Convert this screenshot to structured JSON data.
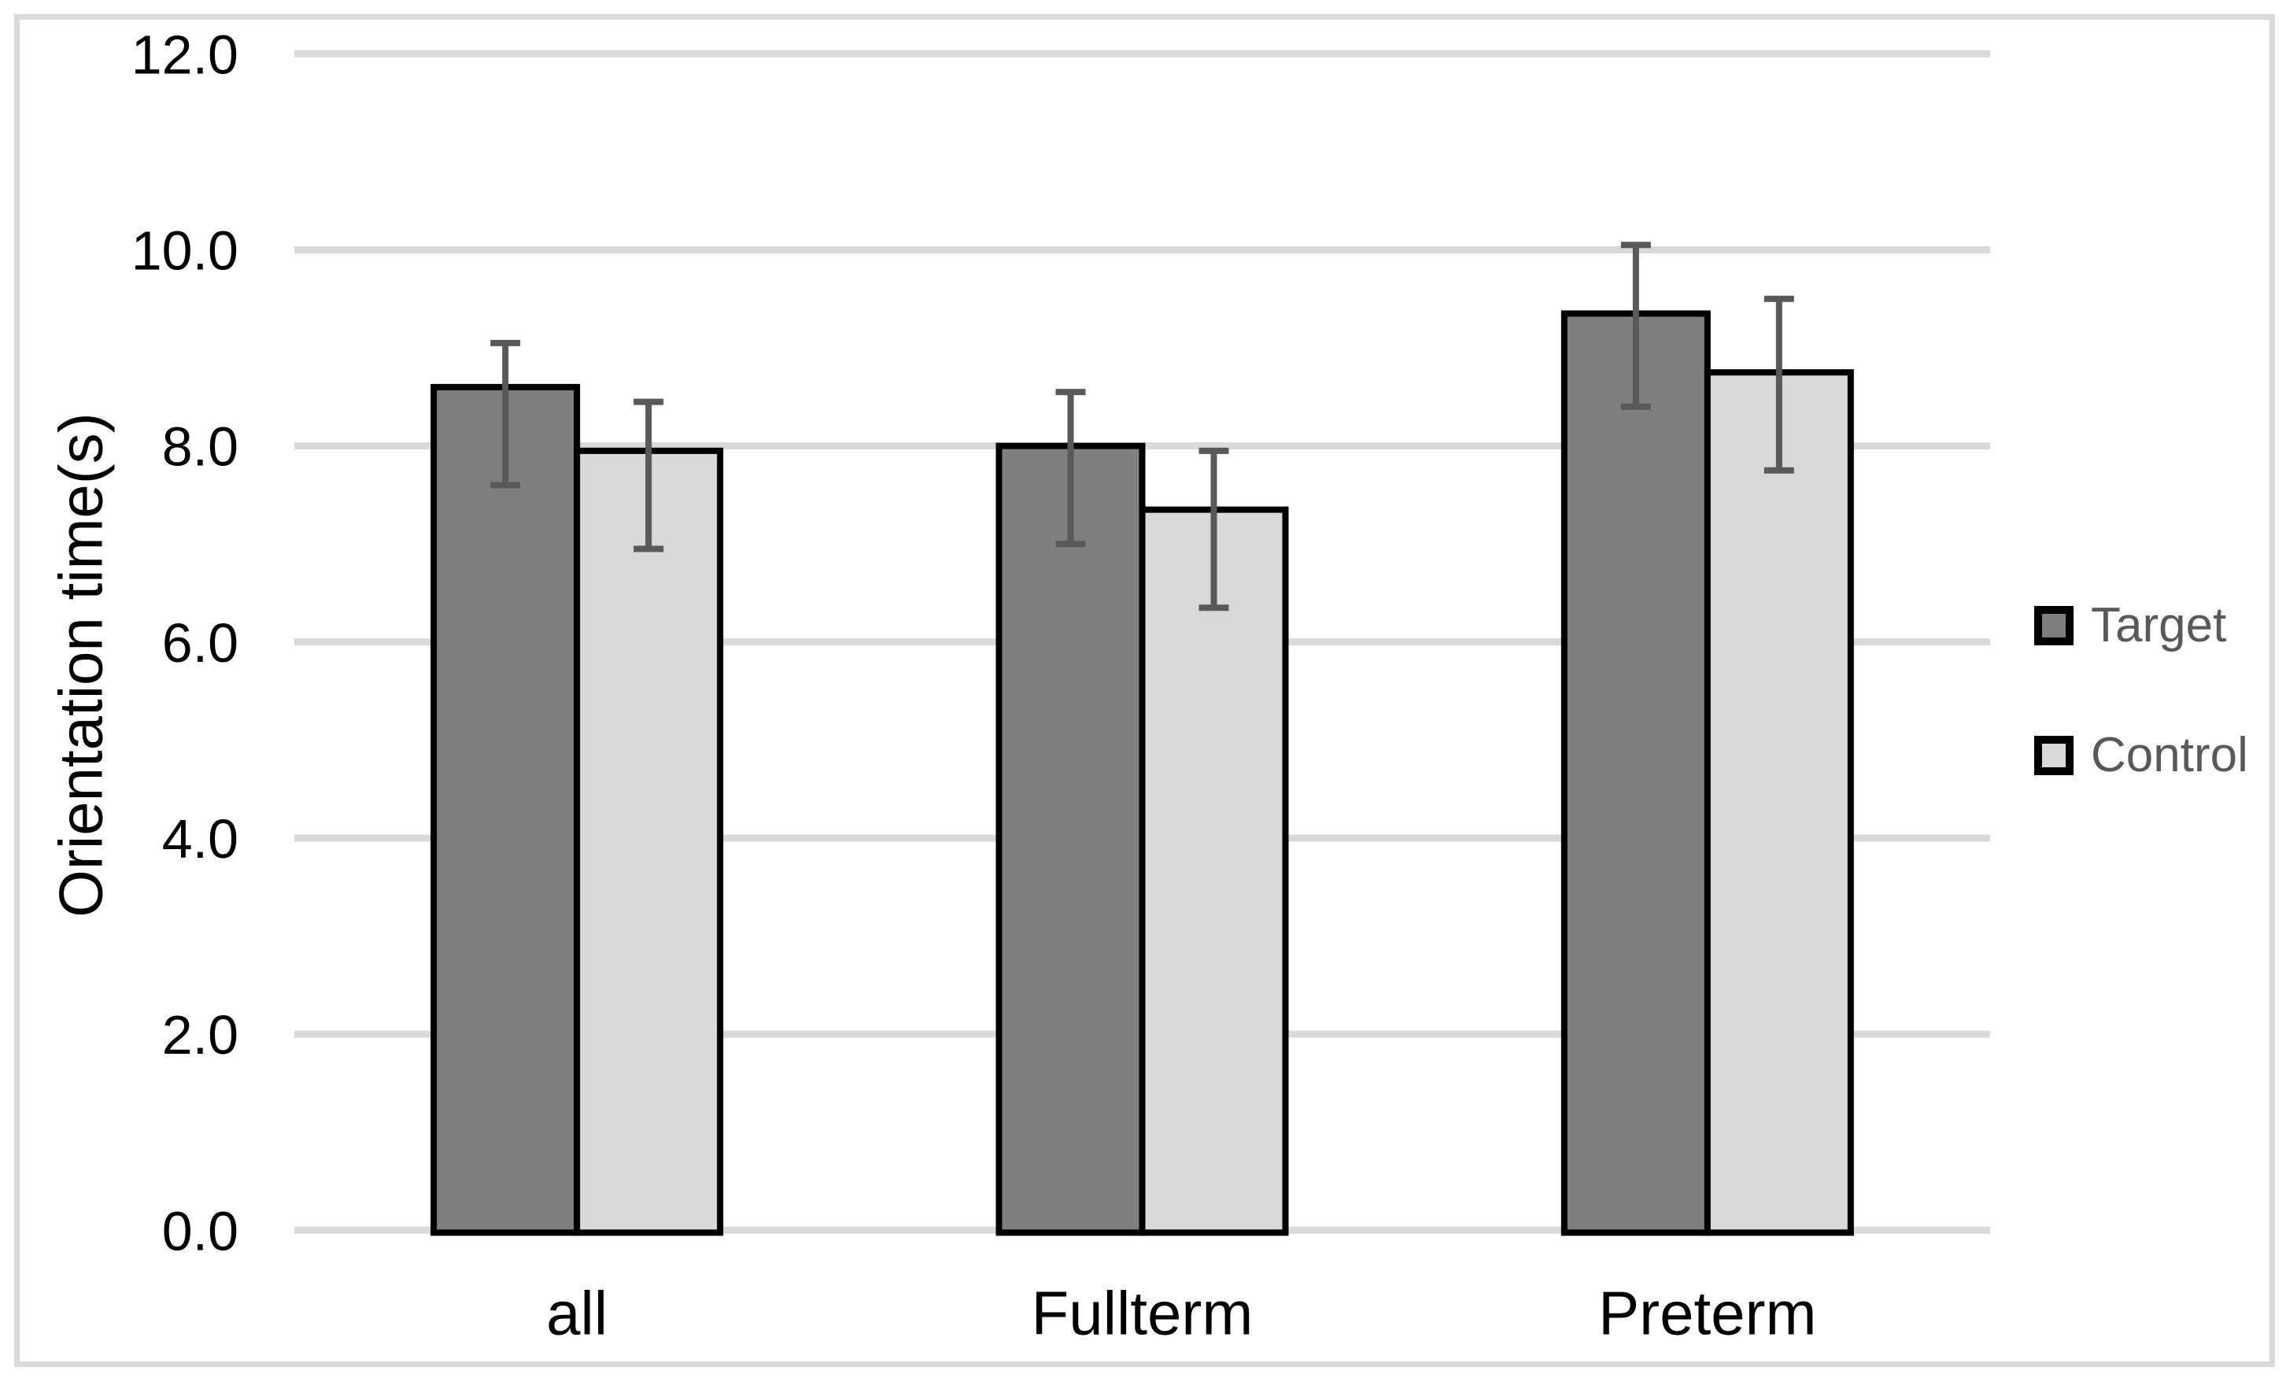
{
  "chart_data": {
    "type": "bar",
    "title": "",
    "categories": [
      "all",
      "Fullterm",
      "Preterm"
    ],
    "series": [
      {
        "name": "Target",
        "color": "#7f7f7f",
        "values": [
          8.6,
          8.0,
          9.35
        ],
        "error_top": [
          9.05,
          8.55,
          10.05
        ],
        "error_bottom": [
          7.6,
          7.0,
          8.4
        ]
      },
      {
        "name": "Control",
        "color": "#d9d9d9",
        "values": [
          7.95,
          7.35,
          8.75
        ],
        "error_top": [
          8.45,
          7.95,
          9.5
        ],
        "error_bottom": [
          6.95,
          6.35,
          7.75
        ]
      }
    ],
    "xlabel": "",
    "ylabel": "Orientation time(s)",
    "ylim": [
      0,
      12
    ],
    "ytick_step": 2,
    "ytick_labels": [
      "0.0",
      "2.0",
      "4.0",
      "6.0",
      "8.0",
      "10.0",
      "12.0"
    ],
    "grid": true,
    "legend_position": "right",
    "colors": {
      "bar_edge": "#000000",
      "error_bar": "#595959",
      "gridline": "#d9d9d9",
      "axis_text": "#000000",
      "legend_text": "#595959",
      "frame": "#d9d9d9",
      "background": "#ffffff"
    }
  }
}
